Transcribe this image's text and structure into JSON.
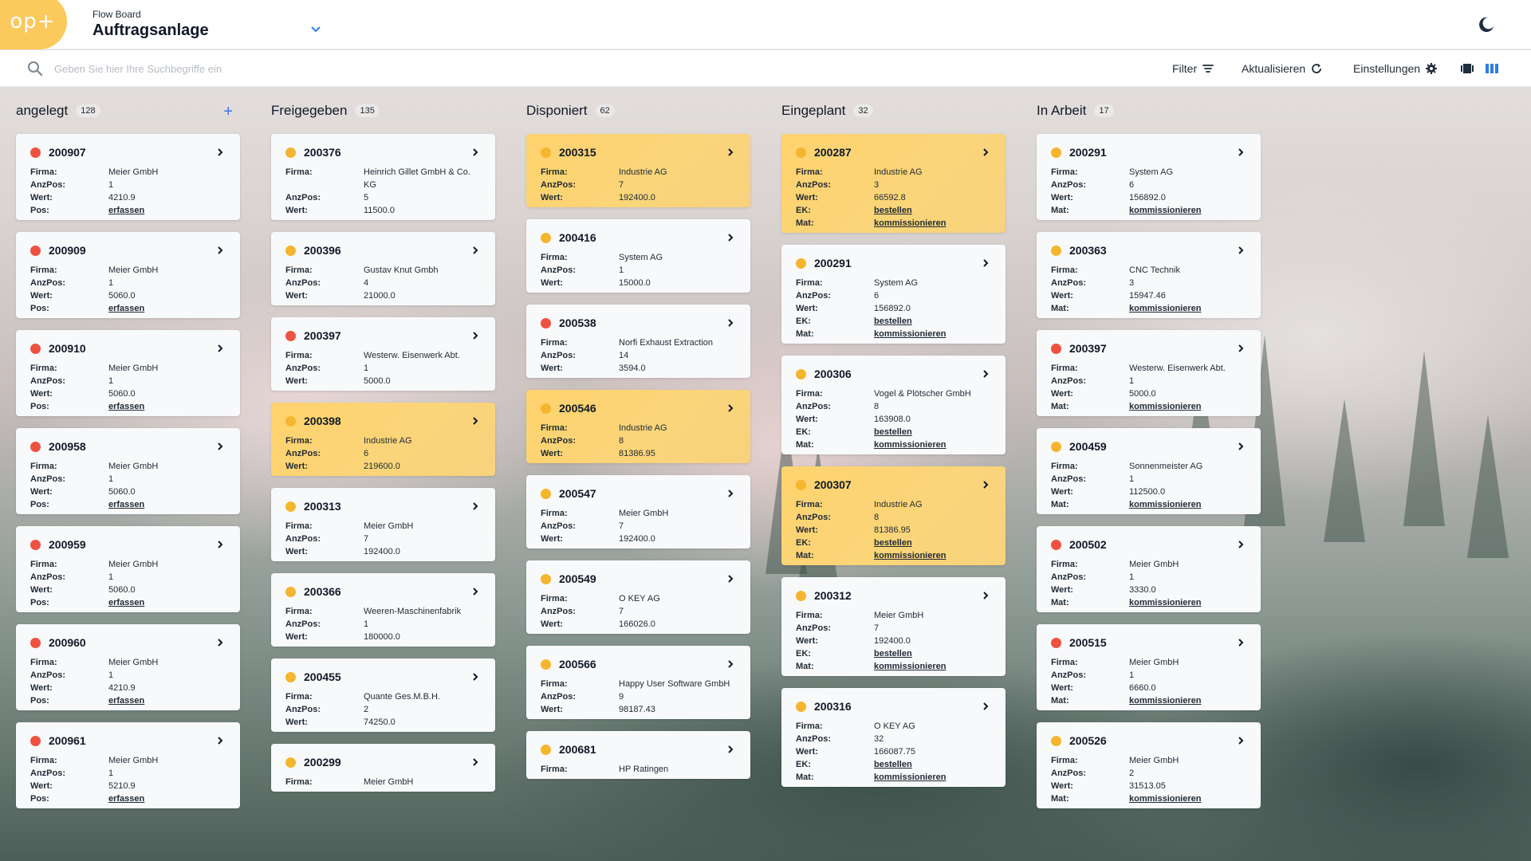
{
  "header": {
    "logo_text": "op+",
    "subtitle": "Flow Board",
    "title": "Auftragsanlage"
  },
  "toolbar": {
    "search_placeholder": "Geben Sie hier Ihre Suchbegriffe ein",
    "filter_label": "Filter",
    "refresh_label": "Aktualisieren",
    "settings_label": "Einstellungen"
  },
  "labels": {
    "firma": "Firma:",
    "anzpos": "AnzPos:",
    "wert": "Wert:",
    "pos": "Pos:",
    "ek": "EK:",
    "mat": "Mat:"
  },
  "columns": [
    {
      "title": "angelegt",
      "count": "128",
      "add": "+",
      "cards": [
        {
          "id": "200907",
          "status": "red",
          "firma": "Meier GmbH",
          "anzpos": "1",
          "wert": "4210.9",
          "pos": "erfassen"
        },
        {
          "id": "200909",
          "status": "red",
          "firma": "Meier GmbH",
          "anzpos": "1",
          "wert": "5060.0",
          "pos": "erfassen"
        },
        {
          "id": "200910",
          "status": "red",
          "firma": "Meier GmbH",
          "anzpos": "1",
          "wert": "5060.0",
          "pos": "erfassen"
        },
        {
          "id": "200958",
          "status": "red",
          "firma": "Meier GmbH",
          "anzpos": "1",
          "wert": "5060.0",
          "pos": "erfassen"
        },
        {
          "id": "200959",
          "status": "red",
          "firma": "Meier GmbH",
          "anzpos": "1",
          "wert": "5060.0",
          "pos": "erfassen"
        },
        {
          "id": "200960",
          "status": "red",
          "firma": "Meier GmbH",
          "anzpos": "1",
          "wert": "4210.9",
          "pos": "erfassen"
        },
        {
          "id": "200961",
          "status": "red",
          "firma": "Meier GmbH",
          "anzpos": "1",
          "wert": "5210.9",
          "pos": "erfassen"
        }
      ]
    },
    {
      "title": "Freigegeben",
      "count": "135",
      "cards": [
        {
          "id": "200376",
          "status": "yellow",
          "firma": "Heinrich Gillet GmbH & Co. KG",
          "anzpos": "5",
          "wert": "11500.0"
        },
        {
          "id": "200396",
          "status": "yellow",
          "firma": "Gustav Knut Gmbh",
          "anzpos": "4",
          "wert": "21000.0"
        },
        {
          "id": "200397",
          "status": "red",
          "firma": "Westerw. Eisenwerk Abt.",
          "anzpos": "1",
          "wert": "5000.0"
        },
        {
          "id": "200398",
          "status": "yellow",
          "highlight": true,
          "firma": "Industrie AG",
          "anzpos": "6",
          "wert": "219600.0"
        },
        {
          "id": "200313",
          "status": "yellow",
          "firma": "Meier GmbH",
          "anzpos": "7",
          "wert": "192400.0"
        },
        {
          "id": "200366",
          "status": "yellow",
          "firma": "Weeren-Maschinenfabrik",
          "anzpos": "1",
          "wert": "180000.0"
        },
        {
          "id": "200455",
          "status": "yellow",
          "firma": "Quante Ges.M.B.H.",
          "anzpos": "2",
          "wert": "74250.0"
        },
        {
          "id": "200299",
          "status": "yellow",
          "firma": "Meier GmbH",
          "anzpos": "",
          "wert": ""
        }
      ]
    },
    {
      "title": "Disponiert",
      "count": "62",
      "cards": [
        {
          "id": "200315",
          "status": "yellow",
          "highlight": true,
          "firma": "Industrie AG",
          "anzpos": "7",
          "wert": "192400.0"
        },
        {
          "id": "200416",
          "status": "yellow",
          "firma": "System AG",
          "anzpos": "1",
          "wert": "15000.0"
        },
        {
          "id": "200538",
          "status": "red",
          "firma": "Norfi Exhaust Extraction",
          "anzpos": "14",
          "wert": "3594.0"
        },
        {
          "id": "200546",
          "status": "yellow",
          "highlight": true,
          "firma": "Industrie AG",
          "anzpos": "8",
          "wert": "81386.95"
        },
        {
          "id": "200547",
          "status": "yellow",
          "firma": "Meier GmbH",
          "anzpos": "7",
          "wert": "192400.0"
        },
        {
          "id": "200549",
          "status": "yellow",
          "firma": "O KEY AG",
          "anzpos": "7",
          "wert": "166026.0"
        },
        {
          "id": "200566",
          "status": "yellow",
          "firma": "Happy User Software GmbH",
          "anzpos": "9",
          "wert": "98187.43"
        },
        {
          "id": "200681",
          "status": "yellow",
          "firma": "HP Ratingen",
          "anzpos": "",
          "wert": ""
        }
      ]
    },
    {
      "title": "Eingeplant",
      "count": "32",
      "cards": [
        {
          "id": "200287",
          "status": "yellow",
          "highlight": true,
          "firma": "Industrie AG",
          "anzpos": "3",
          "wert": "66592.8",
          "ek": "bestellen",
          "mat": "kommissionieren"
        },
        {
          "id": "200291",
          "status": "yellow",
          "firma": "System AG",
          "anzpos": "6",
          "wert": "156892.0",
          "ek": "bestellen",
          "mat": "kommissionieren"
        },
        {
          "id": "200306",
          "status": "yellow",
          "firma": "Vogel & Plötscher GmbH",
          "anzpos": "8",
          "wert": "163908.0",
          "ek": "bestellen",
          "mat": "kommissionieren"
        },
        {
          "id": "200307",
          "status": "yellow",
          "highlight": true,
          "firma": "Industrie AG",
          "anzpos": "8",
          "wert": "81386.95",
          "ek": "bestellen",
          "mat": "kommissionieren"
        },
        {
          "id": "200312",
          "status": "yellow",
          "firma": "Meier GmbH",
          "anzpos": "7",
          "wert": "192400.0",
          "ek": "bestellen",
          "mat": "kommissionieren"
        },
        {
          "id": "200316",
          "status": "yellow",
          "firma": "O KEY AG",
          "anzpos": "32",
          "wert": "166087.75",
          "ek": "bestellen",
          "mat": "kommissionieren"
        }
      ]
    },
    {
      "title": "In Arbeit",
      "count": "17",
      "cards": [
        {
          "id": "200291",
          "status": "yellow",
          "firma": "System AG",
          "anzpos": "6",
          "wert": "156892.0",
          "mat": "kommissionieren"
        },
        {
          "id": "200363",
          "status": "yellow",
          "firma": "CNC Technik",
          "anzpos": "3",
          "wert": "15947.46",
          "mat": "kommissionieren"
        },
        {
          "id": "200397",
          "status": "red",
          "firma": "Westerw. Eisenwerk Abt.",
          "anzpos": "1",
          "wert": "5000.0",
          "mat": "kommissionieren"
        },
        {
          "id": "200459",
          "status": "yellow",
          "firma": "Sonnenmeister AG",
          "anzpos": "1",
          "wert": "112500.0",
          "mat": "kommissionieren"
        },
        {
          "id": "200502",
          "status": "red",
          "firma": "Meier GmbH",
          "anzpos": "1",
          "wert": "3330.0",
          "mat": "kommissionieren"
        },
        {
          "id": "200515",
          "status": "red",
          "firma": "Meier GmbH",
          "anzpos": "1",
          "wert": "6660.0",
          "mat": "kommissionieren"
        },
        {
          "id": "200526",
          "status": "yellow",
          "firma": "Meier GmbH",
          "anzpos": "2",
          "wert": "31513.05",
          "mat": "kommissionieren"
        }
      ]
    }
  ],
  "colors": {
    "accent": "#fcc95d",
    "status_red": "#ef5140",
    "status_yellow": "#f5b52e",
    "highlight_card": "#ffd36e",
    "link_blue": "#2f7de1"
  }
}
